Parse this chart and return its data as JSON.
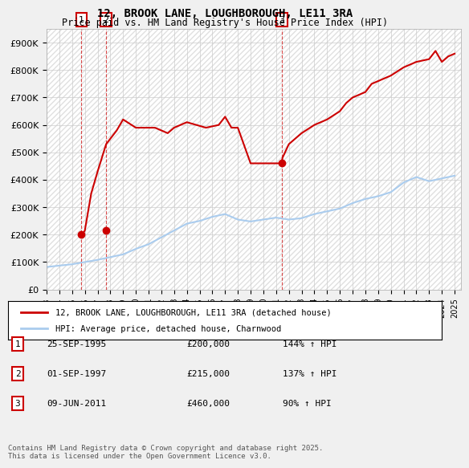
{
  "title1": "12, BROOK LANE, LOUGHBOROUGH, LE11 3RA",
  "title2": "Price paid vs. HM Land Registry's House Price Index (HPI)",
  "legend_line1": "12, BROOK LANE, LOUGHBOROUGH, LE11 3RA (detached house)",
  "legend_line2": "HPI: Average price, detached house, Charnwood",
  "ylabel": "",
  "ylim": [
    0,
    950000
  ],
  "yticks": [
    0,
    100000,
    200000,
    300000,
    400000,
    500000,
    600000,
    700000,
    800000,
    900000
  ],
  "ytick_labels": [
    "£0",
    "£100K",
    "£200K",
    "£300K",
    "£400K",
    "£500K",
    "£600K",
    "£700K",
    "£800K",
    "£900K"
  ],
  "background_color": "#f0f0f0",
  "plot_bg_color": "#ffffff",
  "red_color": "#cc0000",
  "blue_color": "#aaccee",
  "grid_color": "#cccccc",
  "sale_dates": [
    "1995-09-25",
    "1997-09-01",
    "2011-06-09"
  ],
  "sale_prices": [
    200000,
    215000,
    460000
  ],
  "sale_labels": [
    "1",
    "2",
    "3"
  ],
  "sale_info": [
    {
      "num": "1",
      "date": "25-SEP-1995",
      "price": "£200,000",
      "hpi": "144% ↑ HPI"
    },
    {
      "num": "2",
      "date": "01-SEP-1997",
      "price": "£215,000",
      "hpi": "137% ↑ HPI"
    },
    {
      "num": "3",
      "date": "09-JUN-2011",
      "price": "£460,000",
      "hpi": "90% ↑ HPI"
    }
  ],
  "footnote": "Contains HM Land Registry data © Crown copyright and database right 2025.\nThis data is licensed under the Open Government Licence v3.0.",
  "hpi_years": [
    1993,
    1994,
    1995,
    1996,
    1997,
    1998,
    1999,
    2000,
    2001,
    2002,
    2003,
    2004,
    2005,
    2006,
    2007,
    2008,
    2009,
    2010,
    2011,
    2012,
    2013,
    2014,
    2015,
    2016,
    2017,
    2018,
    2019,
    2020,
    2021,
    2022,
    2023,
    2024,
    2025
  ],
  "hpi_values": [
    82000,
    87000,
    92000,
    100000,
    108000,
    118000,
    128000,
    148000,
    165000,
    190000,
    215000,
    240000,
    250000,
    265000,
    275000,
    255000,
    248000,
    255000,
    262000,
    255000,
    260000,
    275000,
    285000,
    295000,
    315000,
    330000,
    340000,
    355000,
    390000,
    410000,
    395000,
    405000,
    415000
  ],
  "price_years_x": [
    1995.73,
    1995.8,
    1996.0,
    1996.5,
    1997.0,
    1997.67,
    1998.5,
    1999.0,
    2000.0,
    2001.5,
    2002.5,
    2003.0,
    2004.0,
    2005.5,
    2006.5,
    2007.0,
    2007.5,
    2008.0,
    2009.0,
    2010.0,
    2011.44,
    2011.5,
    2012.0,
    2013.0,
    2014.0,
    2015.0,
    2016.0,
    2016.5,
    2017.0,
    2018.0,
    2018.5,
    2019.0,
    2020.0,
    2021.0,
    2022.0,
    2023.0,
    2023.5,
    2024.0,
    2024.5,
    2025.0
  ],
  "price_values_y": [
    200000,
    200000,
    215000,
    350000,
    430000,
    530000,
    580000,
    620000,
    590000,
    590000,
    570000,
    590000,
    610000,
    590000,
    600000,
    630000,
    590000,
    590000,
    460000,
    460000,
    460000,
    480000,
    530000,
    570000,
    600000,
    620000,
    650000,
    680000,
    700000,
    720000,
    750000,
    760000,
    780000,
    810000,
    830000,
    840000,
    870000,
    830000,
    850000,
    860000
  ]
}
